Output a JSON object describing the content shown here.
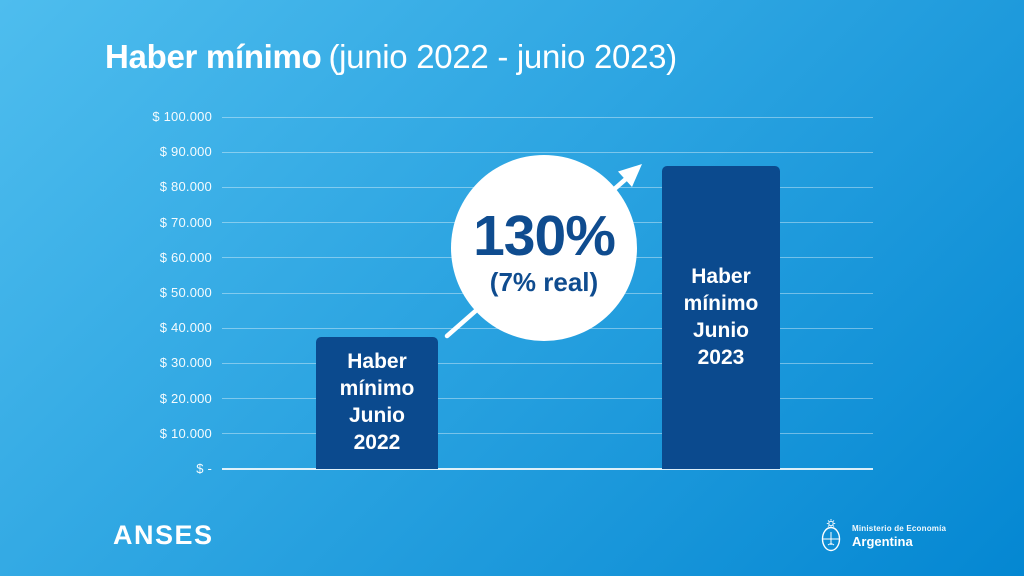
{
  "title": {
    "bold": "Haber mínimo",
    "regular": "(junio 2022 - junio 2023)"
  },
  "chart_data": {
    "type": "bar",
    "title": "Haber mínimo (junio 2022 - junio 2023)",
    "categories": [
      "Haber mínimo Junio 2022",
      "Haber mínimo Junio 2023"
    ],
    "values": [
      37500,
      86000
    ],
    "bars": [
      {
        "label": "Haber\nmínimo\nJunio\n2022",
        "value": 37500
      },
      {
        "label": "Haber\nmínimo\nJunio\n2023",
        "value": 86000
      }
    ],
    "y_ticks": [
      {
        "label": "$ 100.000",
        "value": 100000
      },
      {
        "label": "$ 90.000",
        "value": 90000
      },
      {
        "label": "$ 80.000",
        "value": 80000
      },
      {
        "label": "$ 70.000",
        "value": 70000
      },
      {
        "label": "$ 60.000",
        "value": 60000
      },
      {
        "label": "$ 50.000",
        "value": 50000
      },
      {
        "label": "$ 40.000",
        "value": 40000
      },
      {
        "label": "$ 30.000",
        "value": 30000
      },
      {
        "label": "$ 20.000",
        "value": 20000
      },
      {
        "label": "$ 10.000",
        "value": 10000
      },
      {
        "label": "$ -",
        "value": 0
      }
    ],
    "ylim": [
      0,
      100000
    ],
    "grid": true,
    "legend": false,
    "annotation": {
      "main": "130%",
      "sub": "(7% real)"
    }
  },
  "footer": {
    "anses": "ANSES",
    "ministry_line1": "Ministerio de Economía",
    "ministry_line2": "Argentina"
  },
  "colors": {
    "bg_gradient_start": "#4ebdee",
    "bg_gradient_end": "#0487d2",
    "bar": "#0b4a8e",
    "annotation_text": "#0f4c8f",
    "text": "#ffffff"
  }
}
